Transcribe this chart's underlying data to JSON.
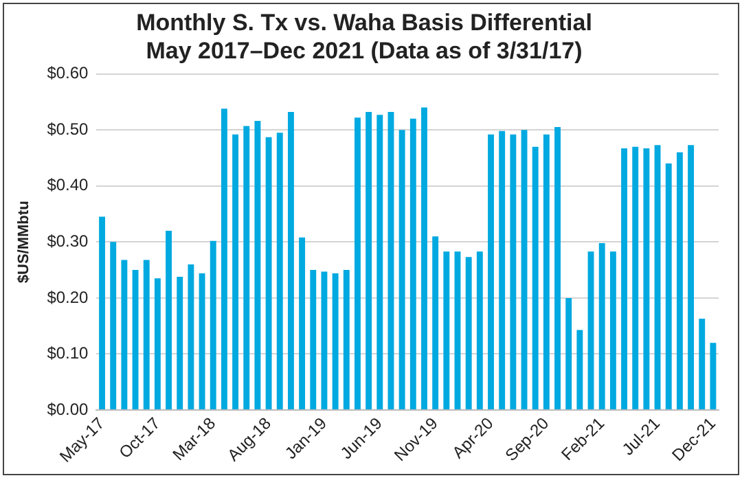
{
  "chart_data": {
    "type": "bar",
    "title": [
      "Monthly S. Tx vs. Waha Basis Differential",
      "May 2017–Dec 2021 (Data as of 3/31/17)"
    ],
    "ylabel": "$US/MMbtu",
    "categories": [
      "May-17",
      null,
      null,
      null,
      null,
      "Oct-17",
      null,
      null,
      null,
      null,
      "Mar-18",
      null,
      null,
      null,
      null,
      "Aug-18",
      null,
      null,
      null,
      null,
      "Jan-19",
      null,
      null,
      null,
      null,
      "Jun-19",
      null,
      null,
      null,
      null,
      "Nov-19",
      null,
      null,
      null,
      null,
      "Apr-20",
      null,
      null,
      null,
      null,
      "Sep-20",
      null,
      null,
      null,
      null,
      "Feb-21",
      null,
      null,
      null,
      null,
      "Jul-21",
      null,
      null,
      null,
      null,
      "Dec-21"
    ],
    "values": [
      0.345,
      0.3,
      0.268,
      0.25,
      0.268,
      0.235,
      0.32,
      0.238,
      0.26,
      0.244,
      0.302,
      0.538,
      0.492,
      0.507,
      0.516,
      0.487,
      0.495,
      0.532,
      0.308,
      0.25,
      0.247,
      0.244,
      0.25,
      0.522,
      0.532,
      0.527,
      0.532,
      0.5,
      0.52,
      0.54,
      0.31,
      0.283,
      0.283,
      0.273,
      0.283,
      0.492,
      0.498,
      0.492,
      0.5,
      0.47,
      0.492,
      0.505,
      0.2,
      0.143,
      0.283,
      0.298,
      0.283,
      0.467,
      0.47,
      0.467,
      0.473,
      0.44,
      0.46,
      0.473,
      0.163,
      0.12
    ],
    "color": "#00a9e0",
    "ylim": [
      0,
      0.6
    ],
    "yticks": [
      {
        "value": 0,
        "label": "$0.00"
      },
      {
        "value": 0.1,
        "label": "$0.10"
      },
      {
        "value": 0.2,
        "label": "$0.20"
      },
      {
        "value": 0.3,
        "label": "$0.30"
      },
      {
        "value": 0.4,
        "label": "$0.40"
      },
      {
        "value": 0.5,
        "label": "$0.50"
      },
      {
        "value": 0.6,
        "label": "$0.60"
      }
    ],
    "grid": "y",
    "legend": false
  }
}
